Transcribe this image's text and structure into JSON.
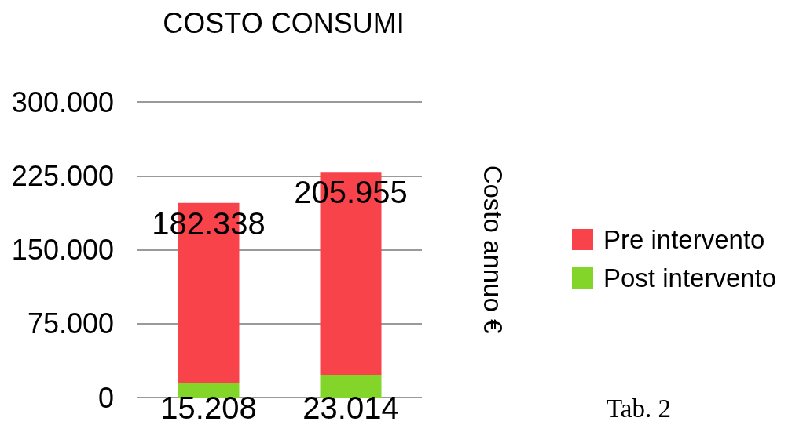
{
  "chart_data": {
    "type": "bar",
    "title": "COSTO CONSUMI",
    "ylabel": "Costo annuo €",
    "categories": [
      null,
      null
    ],
    "stacked": true,
    "series": [
      {
        "name": "Post intervento",
        "color": "#84d52a",
        "values": [
          15208,
          23014
        ],
        "value_labels": [
          "15.208",
          "23.014"
        ]
      },
      {
        "name": "Pre intervento",
        "color": "#f8434a",
        "values": [
          182338,
          205955
        ],
        "value_labels": [
          "182.338",
          "205.955"
        ]
      }
    ],
    "ylim": [
      0,
      300000
    ],
    "yticks": [
      0,
      {
        "value": 75000,
        "label": "75.000"
      },
      {
        "value": 150000,
        "label": "150.000"
      },
      {
        "value": 225000,
        "label": "225.000"
      },
      {
        "value": 300000,
        "label": "300.000"
      }
    ],
    "grid": "y",
    "legend": "right",
    "annotations": [
      "Tab. 2"
    ]
  }
}
